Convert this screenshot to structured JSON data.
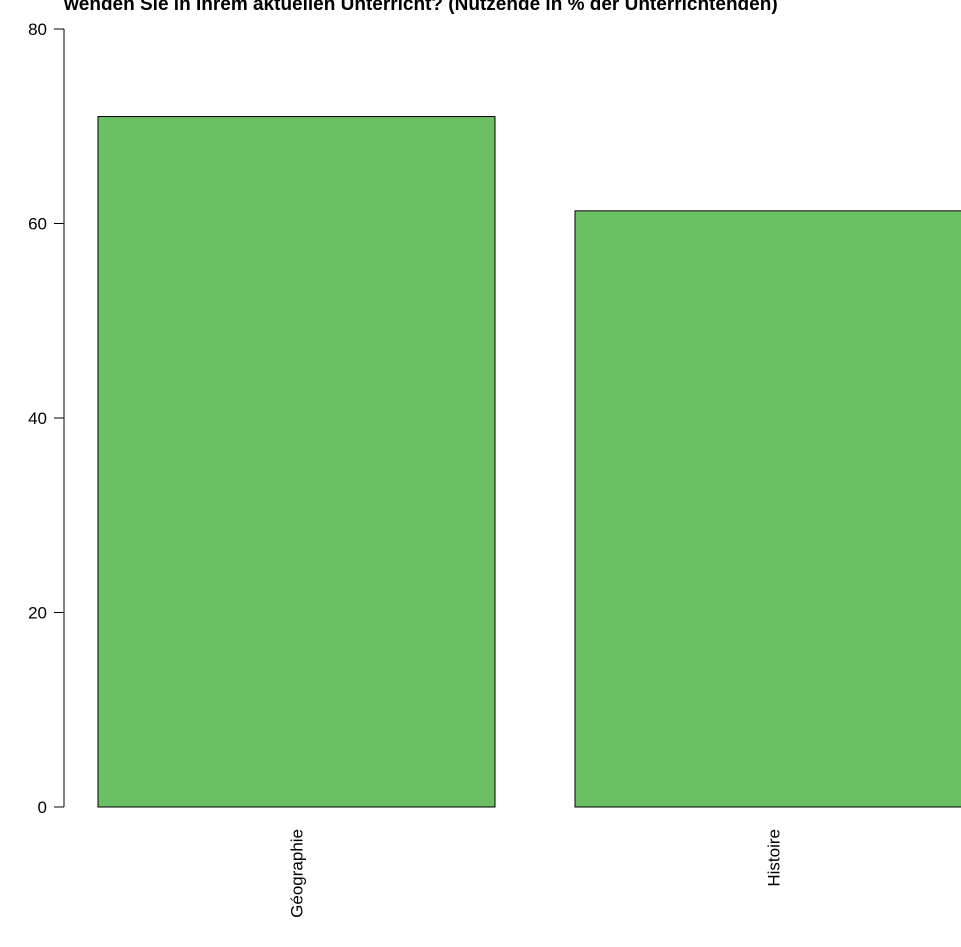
{
  "chart_data": {
    "type": "bar",
    "title": "wenden Sie in Ihrem aktuellen Unterricht? (Nutzende in % der Unterrichtenden)",
    "categories": [
      "Géographie",
      "Histoire"
    ],
    "values": [
      71,
      61.3
    ],
    "ylim": [
      0,
      80
    ],
    "yticks": [
      "0",
      "20",
      "40",
      "60",
      "80"
    ],
    "xlabel": "",
    "ylabel": "",
    "grid": false,
    "legend": "none",
    "bar_color": "#6cc064",
    "bar_border": "#000000"
  }
}
